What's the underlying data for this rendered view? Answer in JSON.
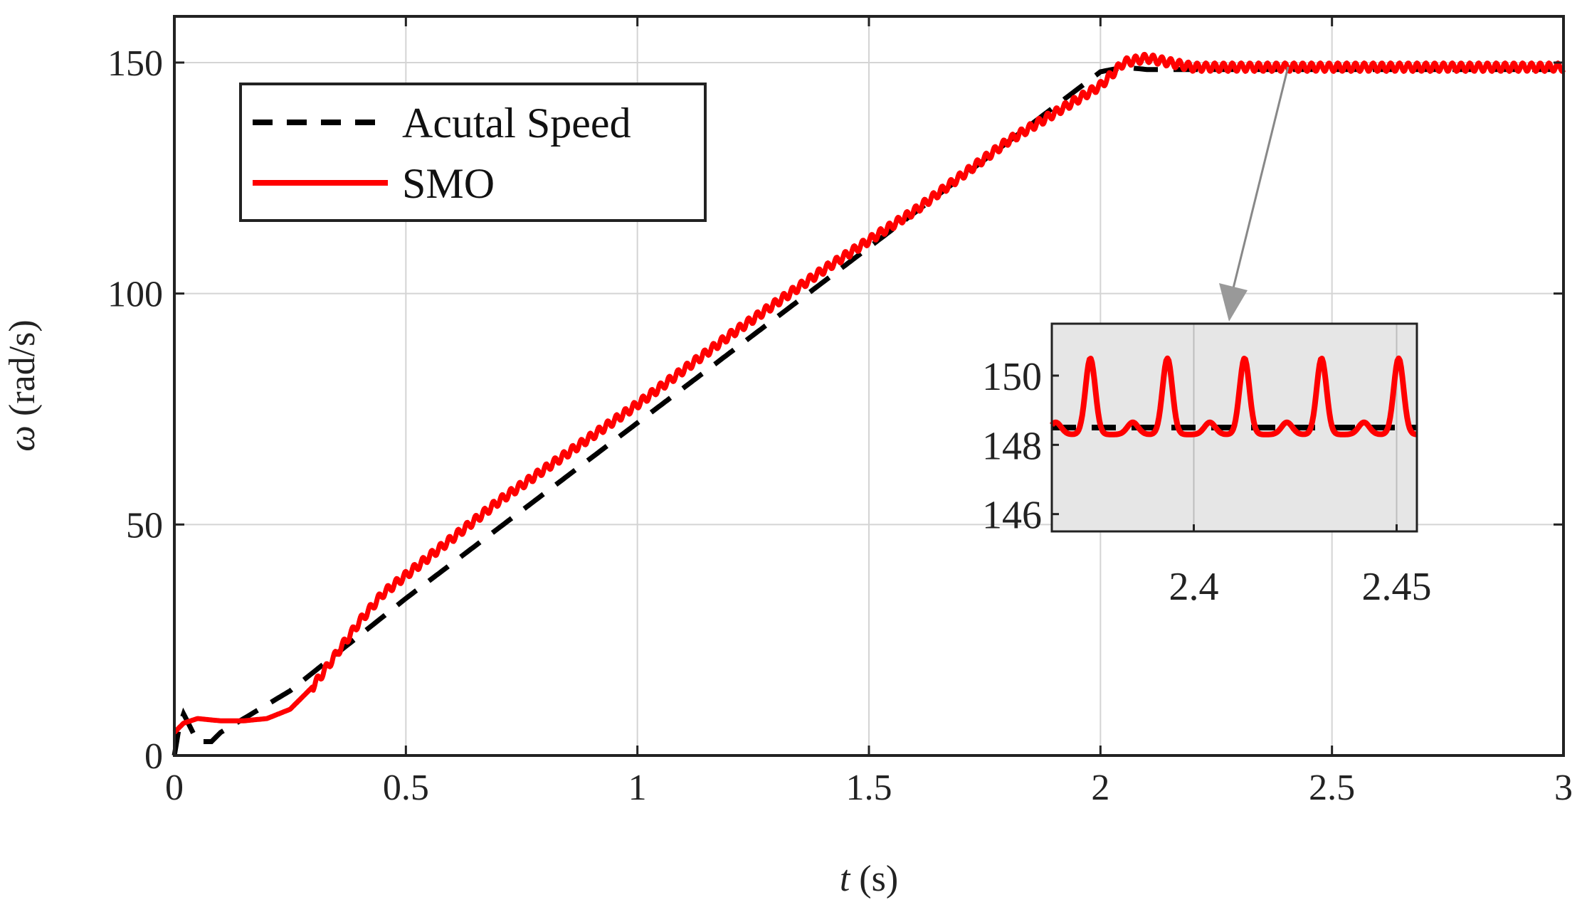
{
  "chart_data": {
    "type": "line",
    "xlabel": "t (s)",
    "xlabel_var": "t",
    "xlabel_unit": " (s)",
    "ylabel": "ω (rad/s)",
    "ylabel_var": "ω",
    "ylabel_unit": " (rad/s)",
    "xlim": [
      0,
      3
    ],
    "ylim": [
      0,
      160
    ],
    "xticks": [
      0,
      0.5,
      1,
      1.5,
      2,
      2.5,
      3
    ],
    "xtick_labels": [
      "0",
      "0.5",
      "1",
      "1.5",
      "2",
      "2.5",
      "3"
    ],
    "yticks": [
      0,
      50,
      100,
      150
    ],
    "ytick_labels": [
      "0",
      "50",
      "100",
      "150"
    ],
    "grid": true,
    "legend_position": "top-left",
    "series": [
      {
        "name": "Acutal Speed",
        "color": "#000000",
        "style": "dashed",
        "x": [
          0,
          0.01,
          0.02,
          0.03,
          0.05,
          0.08,
          0.1,
          0.15,
          0.2,
          0.25,
          0.3,
          0.35,
          0.4,
          0.5,
          1.0,
          1.5,
          2.0,
          2.05,
          2.1,
          2.15,
          2.2,
          3.0
        ],
        "y": [
          0,
          6,
          9,
          7,
          3,
          3,
          5,
          8,
          11,
          14,
          18,
          22,
          26,
          34,
          72,
          110,
          148,
          149,
          148.5,
          148.5,
          148.5,
          148.5
        ]
      },
      {
        "name": "SMO",
        "color": "#ff0000",
        "style": "solid",
        "x": [
          0,
          0.02,
          0.05,
          0.1,
          0.15,
          0.2,
          0.25,
          0.3,
          0.35,
          0.4,
          0.45,
          0.5,
          0.55,
          0.6,
          0.7,
          0.8,
          1.0,
          1.2,
          1.4,
          1.6,
          1.8,
          2.0,
          2.05,
          2.1,
          2.15,
          2.2,
          2.3,
          2.5,
          3.0
        ],
        "y": [
          5,
          7,
          8,
          7.5,
          7.5,
          8,
          10,
          15,
          22,
          29,
          35,
          39,
          43,
          47,
          55,
          62,
          76,
          91,
          105,
          118,
          133,
          145,
          150,
          151,
          150,
          149,
          149,
          149,
          149
        ]
      }
    ],
    "inset": {
      "xlim": [
        2.365,
        2.455
      ],
      "ylim": [
        145.5,
        151.5
      ],
      "xticks": [
        2.4,
        2.45
      ],
      "xtick_labels": [
        "2.4",
        "2.45"
      ],
      "yticks": [
        146,
        148,
        150
      ],
      "ytick_labels": [
        "146",
        "148",
        "150"
      ],
      "background": "#e6e6e6",
      "actual_value": 148.5,
      "smo_mean": 149.0,
      "smo_period": 0.019,
      "smo_description": "Oscillation around actual speed"
    }
  }
}
